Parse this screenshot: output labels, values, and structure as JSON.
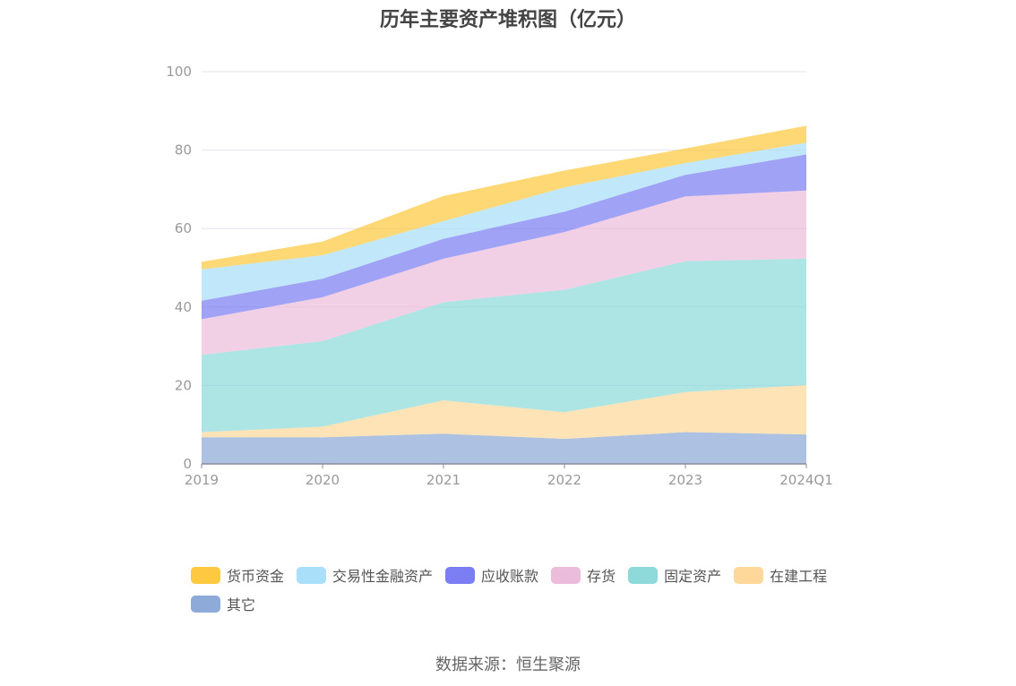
{
  "title": "历年主要资产堆积图（亿元）",
  "source": "数据来源：恒生聚源",
  "chart_data": {
    "type": "area",
    "stacked": true,
    "title": "历年主要资产堆积图（亿元）",
    "categories": [
      "2019",
      "2020",
      "2021",
      "2022",
      "2023",
      "2024Q1"
    ],
    "ylim": [
      0,
      100
    ],
    "yticks": [
      0,
      20,
      40,
      60,
      80,
      100
    ],
    "grid": true,
    "legend_position": "bottom",
    "series": [
      {
        "name": "其它",
        "color": "#8eaad8",
        "values": [
          6.8,
          6.8,
          7.7,
          6.4,
          8.1,
          7.5
        ]
      },
      {
        "name": "在建工程",
        "color": "#fdd89a",
        "values": [
          1.3,
          2.7,
          8.5,
          6.8,
          10.2,
          12.6
        ]
      },
      {
        "name": "固定资产",
        "color": "#8ed9d9",
        "values": [
          19.7,
          21.8,
          25.0,
          31.2,
          33.4,
          32.2
        ]
      },
      {
        "name": "存货",
        "color": "#ebbddb",
        "values": [
          9.1,
          11.2,
          11.1,
          14.7,
          16.5,
          17.4
        ]
      },
      {
        "name": "应收账款",
        "color": "#7b7ef2",
        "values": [
          4.7,
          4.7,
          5.1,
          5.2,
          5.5,
          9.2
        ]
      },
      {
        "name": "交易性金融资产",
        "color": "#a9dff8",
        "values": [
          8.0,
          6.0,
          4.5,
          6.2,
          3.0,
          3.0
        ]
      },
      {
        "name": "货币资金",
        "color": "#fcc940",
        "values": [
          1.9,
          3.5,
          6.4,
          4.3,
          3.7,
          4.3
        ]
      }
    ]
  },
  "legend": [
    {
      "label": "货币资金",
      "color": "#fcc940"
    },
    {
      "label": "交易性金融资产",
      "color": "#a9dff8"
    },
    {
      "label": "应收账款",
      "color": "#7b7ef2"
    },
    {
      "label": "存货",
      "color": "#ebbddb"
    },
    {
      "label": "固定资产",
      "color": "#8ed9d9"
    },
    {
      "label": "在建工程",
      "color": "#fdd89a"
    },
    {
      "label": "其它",
      "color": "#8eaad8"
    }
  ]
}
